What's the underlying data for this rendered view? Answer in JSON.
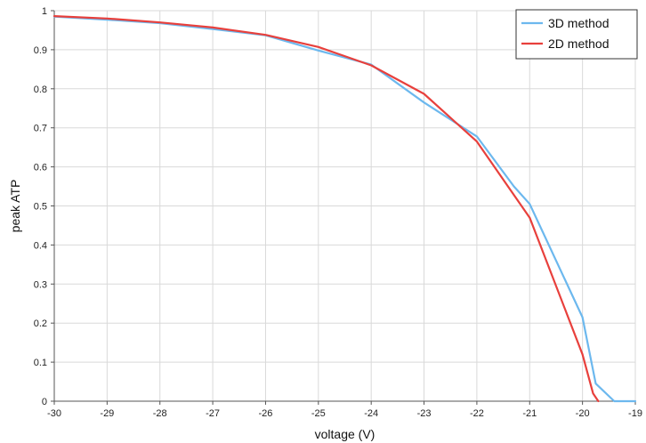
{
  "chart_data": {
    "type": "line",
    "xlabel": "voltage (V)",
    "ylabel": "peak ATP",
    "xlim": [
      -30,
      -19
    ],
    "ylim": [
      0,
      1
    ],
    "x_ticks": [
      -30,
      -29,
      -28,
      -27,
      -26,
      -25,
      -24,
      -23,
      -22,
      -21,
      -20,
      -19
    ],
    "y_ticks": [
      0,
      0.1,
      0.2,
      0.3,
      0.4,
      0.5,
      0.6,
      0.7,
      0.8,
      0.9,
      1
    ],
    "y_tick_labels": [
      "0",
      "0.1",
      "0.2",
      "0.3",
      "0.4",
      "0.5",
      "0.6",
      "0.7",
      "0.8",
      "0.9",
      "1"
    ],
    "grid": true,
    "legend_position": "top-right",
    "series": [
      {
        "name": "3D method",
        "color": "#6cb8ee",
        "x": [
          -30,
          -29,
          -28,
          -27,
          -26,
          -25,
          -24,
          -23,
          -22,
          -21.3,
          -21,
          -20,
          -19.75,
          -19.4,
          -19
        ],
        "y": [
          0.985,
          0.977,
          0.968,
          0.953,
          0.937,
          0.898,
          0.862,
          0.765,
          0.678,
          0.55,
          0.505,
          0.215,
          0.045,
          0.0,
          0.0
        ]
      },
      {
        "name": "2D method",
        "color": "#e8403c",
        "x": [
          -30,
          -29,
          -28,
          -27,
          -26,
          -25,
          -24,
          -23,
          -22,
          -21,
          -20,
          -19.8,
          -19.7
        ],
        "y": [
          0.986,
          0.98,
          0.97,
          0.957,
          0.938,
          0.907,
          0.86,
          0.787,
          0.665,
          0.47,
          0.12,
          0.02,
          0.0
        ]
      }
    ]
  }
}
